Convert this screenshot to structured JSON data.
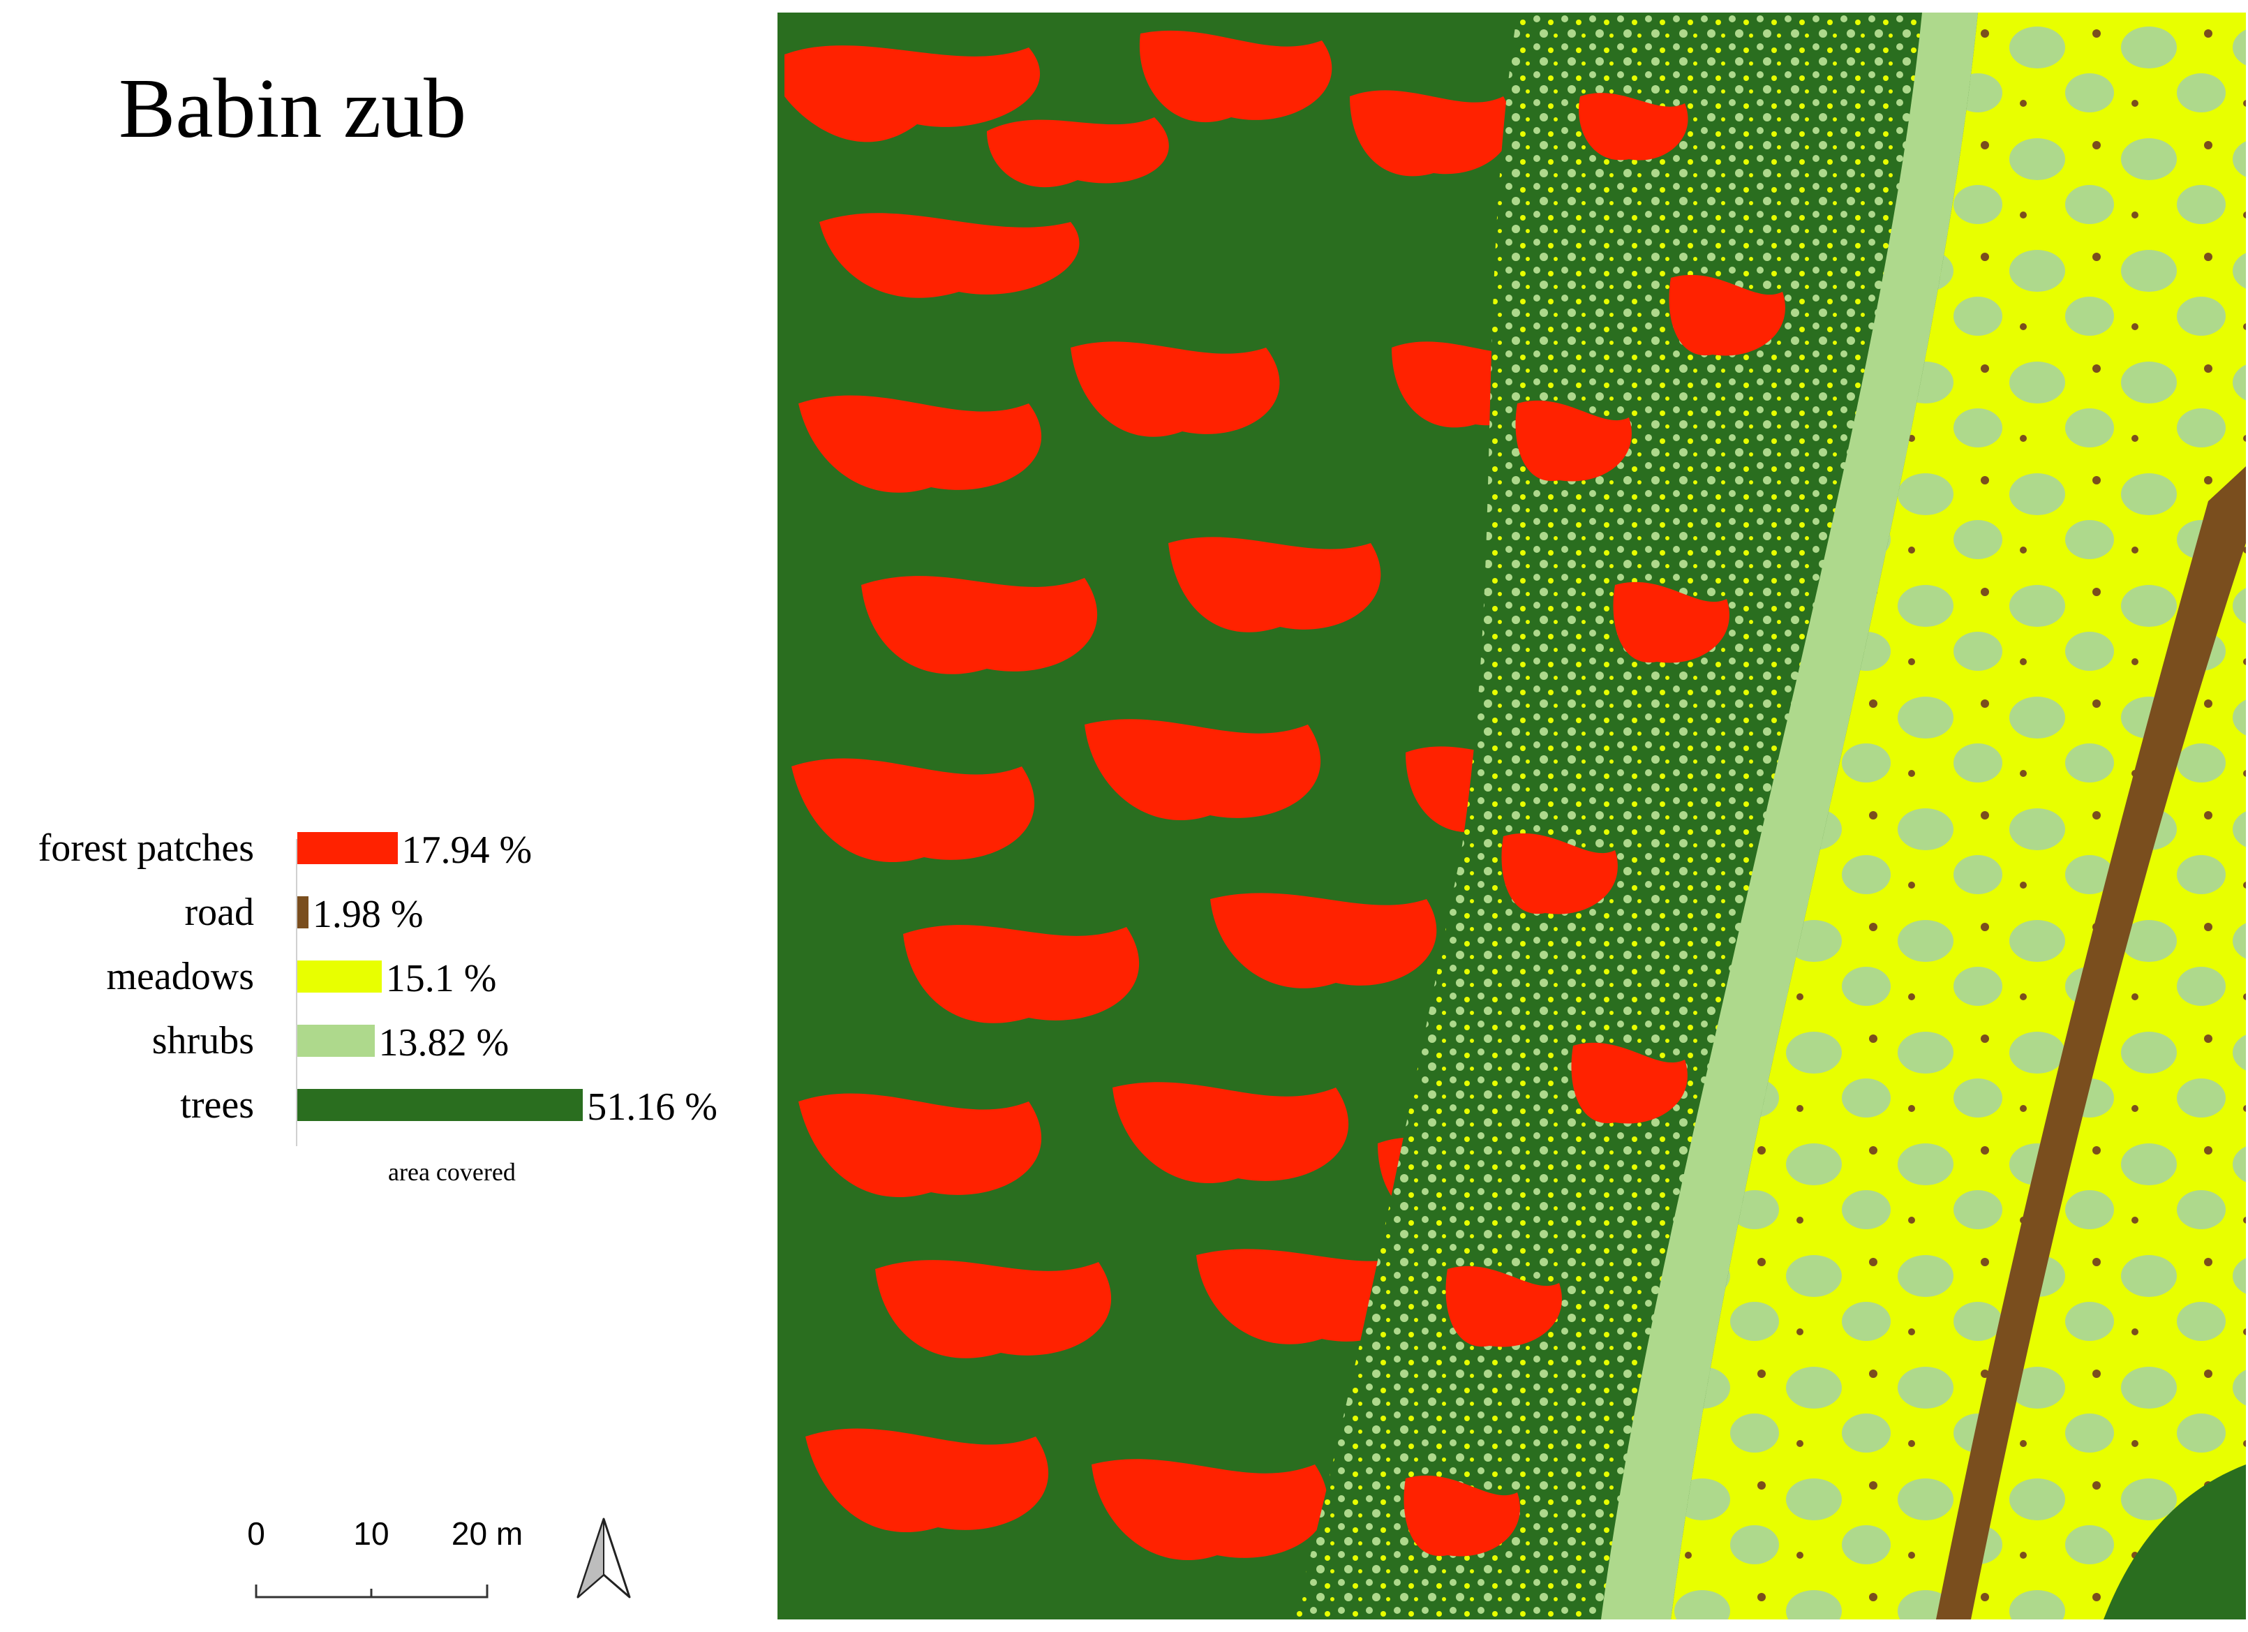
{
  "title": "Babin zub",
  "legend": {
    "caption": "area covered",
    "items": [
      {
        "label": "forest patches",
        "value": 17.94,
        "text": "17.94 %",
        "color": "#ff2200"
      },
      {
        "label": "road",
        "value": 1.98,
        "text": "1.98 %",
        "color": "#7a4e1e"
      },
      {
        "label": "meadows",
        "value": 15.1,
        "text": "15.1 %",
        "color": "#e8ff00"
      },
      {
        "label": "shrubs",
        "value": 13.82,
        "text": "13.82 %",
        "color": "#aed98c"
      },
      {
        "label": "trees",
        "value": 51.16,
        "text": "51.16 %",
        "color": "#2a6e1f"
      }
    ]
  },
  "scale_bar": {
    "ticks": [
      "0",
      "10",
      "20 m"
    ]
  },
  "north_arrow": {
    "icon": "north-arrow-icon"
  }
}
